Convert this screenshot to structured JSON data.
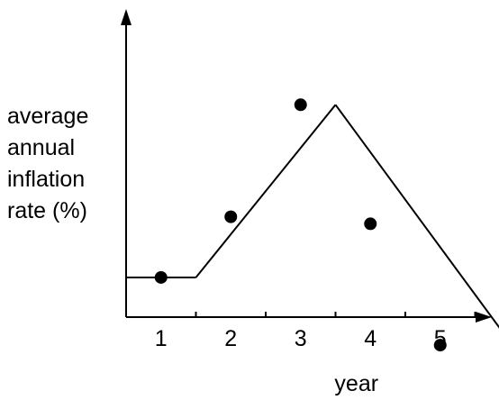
{
  "chart_data": {
    "type": "line",
    "xlabel": "year",
    "ylabel_lines": [
      "average",
      "annual",
      "inflation",
      "rate (%)"
    ],
    "x_ticks": [
      "1",
      "2",
      "3",
      "4",
      "5"
    ],
    "xlim": [
      0,
      5.6
    ],
    "ylim": [
      0,
      10
    ],
    "grid": false,
    "y_tick_labels_shown": false,
    "line": {
      "x": [
        0,
        1,
        3,
        5.9
      ],
      "y": [
        1.7,
        1.7,
        9.1,
        -2.7
      ]
    },
    "points": {
      "x": [
        0.5,
        1.5,
        2.5,
        3.5,
        4.5
      ],
      "y": [
        1.7,
        4.3,
        9.1,
        4.0,
        -1.2
      ]
    },
    "colors": {
      "line": "#000000",
      "points": "#000000",
      "axis": "#000000"
    }
  }
}
